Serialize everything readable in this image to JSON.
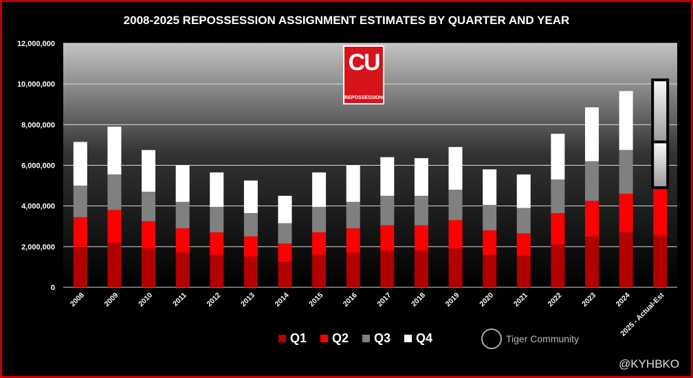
{
  "chart_data": {
    "type": "bar",
    "stacked": true,
    "title": "2008-2025 REPOSSESSION ASSIGNMENT ESTIMATES BY QUARTER AND YEAR",
    "xlabel": "",
    "ylabel": "",
    "ylim": [
      0,
      12000000
    ],
    "yticks": [
      "0",
      "2,000,000",
      "4,000,000",
      "6,000,000",
      "8,000,000",
      "10,000,000",
      "12,000,000"
    ],
    "ytick_values": [
      0,
      2000000,
      4000000,
      6000000,
      8000000,
      10000000,
      12000000
    ],
    "grid": true,
    "legend_position": "bottom",
    "categories": [
      "2008",
      "2009",
      "2010",
      "2011",
      "2012",
      "2013",
      "2014",
      "2015",
      "2016",
      "2017",
      "2018",
      "2019",
      "2020",
      "2021",
      "2022",
      "2023",
      "2024",
      "2025 - Actual-Est"
    ],
    "series": [
      {
        "name": "Q1",
        "color": "#b00000",
        "values": [
          2000000,
          2200000,
          1900000,
          1700000,
          1600000,
          1500000,
          1250000,
          1600000,
          1700000,
          1800000,
          1800000,
          1900000,
          1600000,
          1550000,
          2100000,
          2500000,
          2700000,
          2550000
        ]
      },
      {
        "name": "Q2",
        "color": "#ff0000",
        "values": [
          1450000,
          1600000,
          1350000,
          1200000,
          1100000,
          1000000,
          900000,
          1100000,
          1200000,
          1250000,
          1250000,
          1400000,
          1200000,
          1100000,
          1550000,
          1750000,
          1900000,
          2350000
        ]
      },
      {
        "name": "Q3",
        "color": "#808080",
        "values": [
          1550000,
          1750000,
          1450000,
          1300000,
          1250000,
          1150000,
          1000000,
          1250000,
          1300000,
          1450000,
          1450000,
          1500000,
          1250000,
          1250000,
          1650000,
          1950000,
          2150000,
          2250000
        ]
      },
      {
        "name": "Q4",
        "color": "#ffffff",
        "values": [
          2150000,
          2350000,
          2050000,
          1800000,
          1700000,
          1600000,
          1350000,
          1700000,
          1800000,
          1900000,
          1850000,
          2100000,
          1750000,
          1650000,
          2250000,
          2650000,
          2900000,
          3050000
        ]
      }
    ],
    "estimated": {
      "category": "2025 - Actual-Est",
      "series": [
        "Q3",
        "Q4"
      ]
    }
  },
  "logo": {
    "mark": "CU",
    "text": "REPOSSESSION"
  },
  "watermark": {
    "text": "Tiger Community",
    "handle": "@KYHBKO"
  }
}
